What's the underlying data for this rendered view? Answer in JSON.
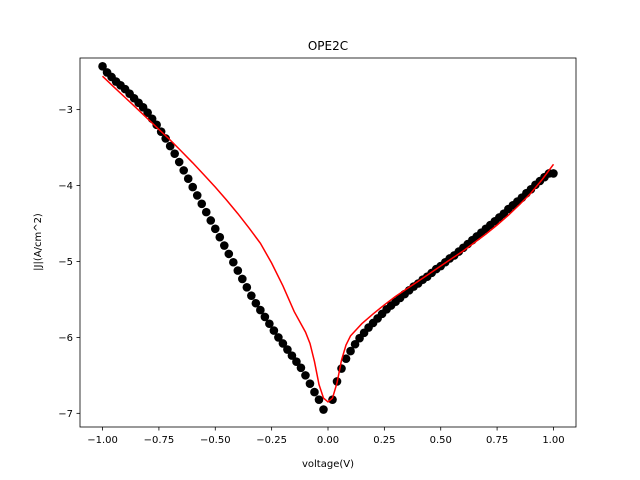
{
  "chart_data": {
    "type": "scatter",
    "title": "OPE2C",
    "xlabel": "voltage(V)",
    "ylabel": "|J|(A/cm^2)",
    "xlim": [
      -1.1,
      1.1
    ],
    "ylim": [
      -7.18,
      -2.32
    ],
    "xticks": [
      -1.0,
      -0.75,
      -0.5,
      -0.25,
      0.0,
      0.25,
      0.5,
      0.75,
      1.0
    ],
    "xtick_labels": [
      "−1.00",
      "−0.75",
      "−0.50",
      "−0.25",
      "0.00",
      "0.25",
      "0.50",
      "0.75",
      "1.00"
    ],
    "yticks": [
      -7,
      -6,
      -5,
      -4,
      -3
    ],
    "ytick_labels": [
      "−7",
      "−6",
      "−5",
      "−4",
      "−3"
    ],
    "grid": false,
    "colors": {
      "measured": "#000000",
      "fit": "#ff0000"
    },
    "series": [
      {
        "kind": "markers",
        "x": [
          -1.0,
          -0.98,
          -0.96,
          -0.94,
          -0.92,
          -0.9,
          -0.88,
          -0.86,
          -0.84,
          -0.82,
          -0.8,
          -0.78,
          -0.76,
          -0.74,
          -0.72,
          -0.7,
          -0.68,
          -0.66,
          -0.64,
          -0.62,
          -0.6,
          -0.58,
          -0.56,
          -0.54,
          -0.52,
          -0.5,
          -0.48,
          -0.46,
          -0.44,
          -0.42,
          -0.4,
          -0.38,
          -0.36,
          -0.34,
          -0.32,
          -0.3,
          -0.28,
          -0.26,
          -0.24,
          -0.22,
          -0.2,
          -0.18,
          -0.16,
          -0.14,
          -0.12,
          -0.1,
          -0.08,
          -0.06,
          -0.04,
          -0.02,
          0.02,
          0.04,
          0.06,
          0.08,
          0.1,
          0.12,
          0.14,
          0.16,
          0.18,
          0.2,
          0.22,
          0.24,
          0.26,
          0.28,
          0.3,
          0.32,
          0.34,
          0.36,
          0.38,
          0.4,
          0.42,
          0.44,
          0.46,
          0.48,
          0.5,
          0.52,
          0.54,
          0.56,
          0.58,
          0.6,
          0.62,
          0.64,
          0.66,
          0.68,
          0.7,
          0.72,
          0.74,
          0.76,
          0.78,
          0.8,
          0.82,
          0.84,
          0.86,
          0.88,
          0.9,
          0.92,
          0.94,
          0.96,
          0.98,
          1.0
        ],
        "y": [
          -2.43,
          -2.51,
          -2.57,
          -2.63,
          -2.68,
          -2.73,
          -2.79,
          -2.85,
          -2.91,
          -2.97,
          -3.04,
          -3.12,
          -3.2,
          -3.29,
          -3.38,
          -3.48,
          -3.58,
          -3.69,
          -3.8,
          -3.91,
          -4.02,
          -4.13,
          -4.24,
          -4.35,
          -4.46,
          -4.57,
          -4.68,
          -4.79,
          -4.9,
          -5.01,
          -5.12,
          -5.23,
          -5.34,
          -5.45,
          -5.55,
          -5.64,
          -5.73,
          -5.82,
          -5.91,
          -6.0,
          -6.08,
          -6.16,
          -6.24,
          -6.32,
          -6.4,
          -6.5,
          -6.61,
          -6.72,
          -6.82,
          -6.95,
          -6.82,
          -6.58,
          -6.41,
          -6.28,
          -6.18,
          -6.09,
          -6.01,
          -5.94,
          -5.87,
          -5.81,
          -5.75,
          -5.69,
          -5.63,
          -5.58,
          -5.53,
          -5.48,
          -5.43,
          -5.38,
          -5.33,
          -5.29,
          -5.24,
          -5.2,
          -5.15,
          -5.1,
          -5.06,
          -5.01,
          -4.96,
          -4.92,
          -4.87,
          -4.82,
          -4.77,
          -4.72,
          -4.67,
          -4.62,
          -4.57,
          -4.52,
          -4.47,
          -4.42,
          -4.37,
          -4.31,
          -4.26,
          -4.21,
          -4.16,
          -4.1,
          -4.05,
          -3.99,
          -3.94,
          -3.89,
          -3.84,
          -3.84
        ]
      },
      {
        "kind": "line",
        "x": [
          -1.0,
          -0.95,
          -0.9,
          -0.85,
          -0.8,
          -0.75,
          -0.7,
          -0.65,
          -0.6,
          -0.55,
          -0.5,
          -0.45,
          -0.4,
          -0.35,
          -0.3,
          -0.25,
          -0.2,
          -0.15,
          -0.1,
          -0.08,
          -0.06,
          -0.04,
          -0.02,
          0.0,
          0.02,
          0.04,
          0.06,
          0.08,
          0.1,
          0.15,
          0.2,
          0.25,
          0.3,
          0.35,
          0.4,
          0.45,
          0.5,
          0.55,
          0.6,
          0.65,
          0.7,
          0.75,
          0.8,
          0.85,
          0.9,
          0.95,
          1.0
        ],
        "y": [
          -2.56,
          -2.7,
          -2.84,
          -2.98,
          -3.12,
          -3.26,
          -3.4,
          -3.55,
          -3.7,
          -3.86,
          -4.02,
          -4.19,
          -4.37,
          -4.56,
          -4.76,
          -5.02,
          -5.32,
          -5.66,
          -5.93,
          -6.08,
          -6.32,
          -6.62,
          -6.8,
          -6.85,
          -6.8,
          -6.6,
          -6.3,
          -6.1,
          -5.98,
          -5.82,
          -5.69,
          -5.57,
          -5.46,
          -5.36,
          -5.26,
          -5.16,
          -5.06,
          -4.96,
          -4.86,
          -4.75,
          -4.64,
          -4.52,
          -4.39,
          -4.25,
          -4.1,
          -3.92,
          -3.72
        ]
      }
    ]
  }
}
